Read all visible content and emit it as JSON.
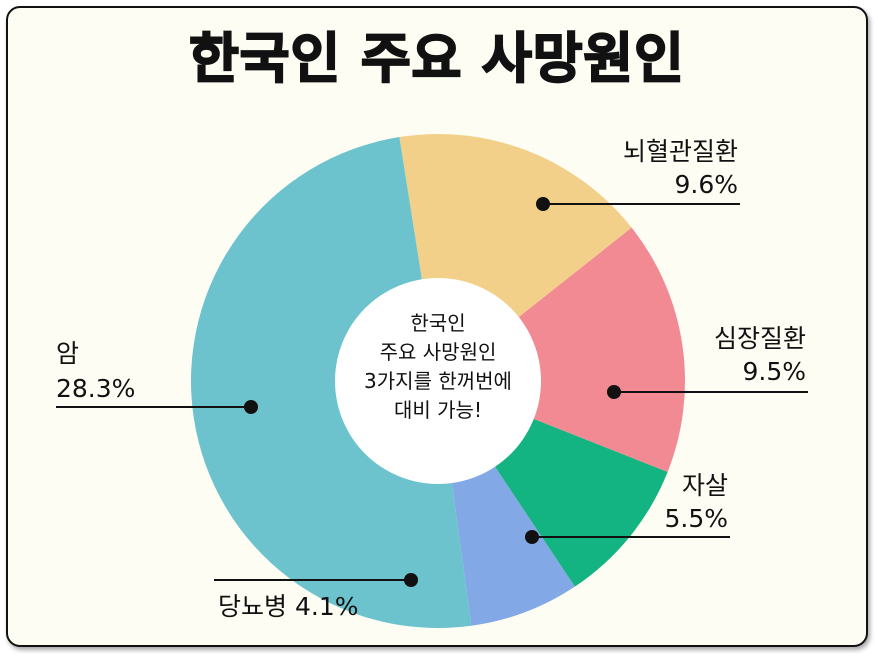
{
  "title": "한국인 주요 사망원인",
  "center_text": [
    "한국인",
    "주요 사망원인",
    "3가지를 한꺼번에",
    "대비 가능!"
  ],
  "chart_data": {
    "type": "pie",
    "title": "한국인 주요 사망원인",
    "slices": [
      {
        "label": "뇌혈관질환",
        "value": 9.6,
        "value_label": "9.6%",
        "color": "#f3d08a"
      },
      {
        "label": "심장질환",
        "value": 9.5,
        "value_label": "9.5%",
        "color": "#f28a93"
      },
      {
        "label": "자살",
        "value": 5.5,
        "value_label": "5.5%",
        "color": "#14b382"
      },
      {
        "label": "당뇨병",
        "value": 4.1,
        "value_label": "4.1%",
        "color": "#82a9e5"
      },
      {
        "label": "암",
        "value": 28.3,
        "value_label": "28.3%",
        "color": "#6cc3cd"
      }
    ]
  }
}
